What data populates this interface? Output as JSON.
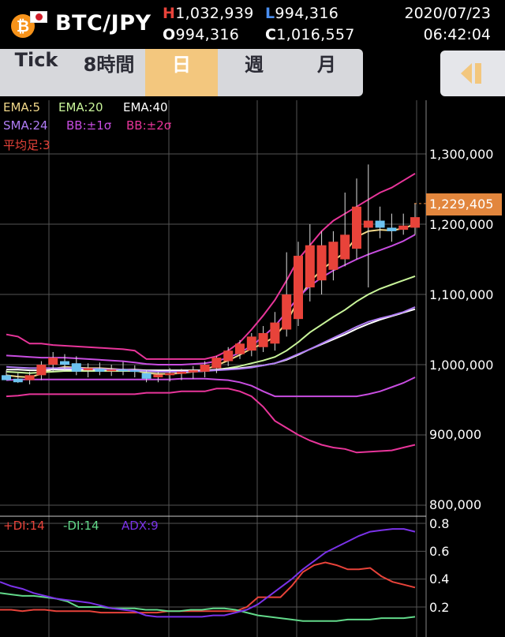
{
  "header": {
    "coin_icon": "bitcoin-icon",
    "flag_icon": "japan-flag-icon",
    "pair": "BTC/JPY",
    "high_label": "H",
    "high": "1,032,939",
    "low_label": "L",
    "low": "994,316",
    "open_label": "O",
    "open": "994,316",
    "close_label": "C",
    "close": "1,016,557",
    "date": "2020/07/23",
    "time": "06:42:04"
  },
  "tabs": [
    {
      "label": "Tick",
      "active": false
    },
    {
      "label": "8時間",
      "active": false
    },
    {
      "label": "日",
      "active": true
    },
    {
      "label": "週",
      "active": false
    },
    {
      "label": "月",
      "active": false
    }
  ],
  "side_button_icon": "collapse-sidebar-icon",
  "colors": {
    "ema5": "#f2d98a",
    "ema20": "#c9f59a",
    "ema40": "#ffffff",
    "sma24": "#b07cf5",
    "bb1": "#c84de0",
    "bb2": "#e8359a",
    "heikin": "#e8433a",
    "candle_up": "#e8433a",
    "candle_down": "#6cc3f0",
    "plus_di": "#e8433a",
    "minus_di": "#62d98a",
    "adx": "#7a32e8"
  },
  "legend": {
    "ema5": "EMA:5",
    "ema20": "EMA:20",
    "ema40": "EMA:40",
    "sma24": "SMA:24",
    "bb1": "BB:±1σ",
    "bb2": "BB:±2σ",
    "heikin": "平均足:3",
    "plus_di": "+DI:14",
    "minus_di": "-DI:14",
    "adx": "ADX:9"
  },
  "last_price": "1,229,405",
  "chart_data": [
    {
      "type": "candlestick",
      "title": "",
      "ylim": [
        795000,
        1350000
      ],
      "y_ticks": [
        "1,300,000",
        "1,200,000",
        "1,100,000",
        "1,000,000",
        "900,000",
        "800,000"
      ],
      "y_tick_values": [
        1300000,
        1200000,
        1100000,
        1000000,
        900000,
        800000
      ],
      "candles": [
        {
          "o": 985000,
          "h": 992000,
          "l": 978000,
          "c": 978000
        },
        {
          "o": 980000,
          "h": 988000,
          "l": 974000,
          "c": 975000
        },
        {
          "o": 978000,
          "h": 990000,
          "l": 972000,
          "c": 985000
        },
        {
          "o": 985000,
          "h": 1005000,
          "l": 978000,
          "c": 1000000
        },
        {
          "o": 1000000,
          "h": 1018000,
          "l": 990000,
          "c": 1010000
        },
        {
          "o": 1005000,
          "h": 1015000,
          "l": 990000,
          "c": 1000000
        },
        {
          "o": 1002000,
          "h": 1012000,
          "l": 985000,
          "c": 990000
        },
        {
          "o": 992000,
          "h": 1002000,
          "l": 982000,
          "c": 995000
        },
        {
          "o": 994000,
          "h": 1003000,
          "l": 985000,
          "c": 990000
        },
        {
          "o": 991000,
          "h": 1000000,
          "l": 984000,
          "c": 993000
        },
        {
          "o": 993000,
          "h": 1004000,
          "l": 985000,
          "c": 992000
        },
        {
          "o": 992000,
          "h": 999000,
          "l": 982000,
          "c": 990000
        },
        {
          "o": 988000,
          "h": 992000,
          "l": 975000,
          "c": 980000
        },
        {
          "o": 982000,
          "h": 990000,
          "l": 975000,
          "c": 986000
        },
        {
          "o": 985000,
          "h": 995000,
          "l": 976000,
          "c": 988000
        },
        {
          "o": 987000,
          "h": 994000,
          "l": 978000,
          "c": 990000
        },
        {
          "o": 989000,
          "h": 998000,
          "l": 980000,
          "c": 992000
        },
        {
          "o": 990000,
          "h": 1005000,
          "l": 982000,
          "c": 1000000
        },
        {
          "o": 995000,
          "h": 1012000,
          "l": 988000,
          "c": 1010000
        },
        {
          "o": 1005000,
          "h": 1025000,
          "l": 998000,
          "c": 1020000
        },
        {
          "o": 1015000,
          "h": 1035000,
          "l": 1008000,
          "c": 1030000
        },
        {
          "o": 1020000,
          "h": 1045000,
          "l": 1012000,
          "c": 1040000
        },
        {
          "o": 1025000,
          "h": 1055000,
          "l": 1018000,
          "c": 1045000
        },
        {
          "o": 1030000,
          "h": 1075000,
          "l": 1020000,
          "c": 1060000
        },
        {
          "o": 1050000,
          "h": 1160000,
          "l": 1040000,
          "c": 1100000
        },
        {
          "o": 1065000,
          "h": 1175000,
          "l": 1055000,
          "c": 1155000
        },
        {
          "o": 1110000,
          "h": 1200000,
          "l": 1090000,
          "c": 1170000
        },
        {
          "o": 1120000,
          "h": 1190000,
          "l": 1100000,
          "c": 1170000
        },
        {
          "o": 1135000,
          "h": 1190000,
          "l": 1120000,
          "c": 1175000
        },
        {
          "o": 1150000,
          "h": 1245000,
          "l": 1140000,
          "c": 1185000
        },
        {
          "o": 1165000,
          "h": 1265000,
          "l": 1150000,
          "c": 1225000
        },
        {
          "o": 1195000,
          "h": 1285000,
          "l": 1110000,
          "c": 1205000
        },
        {
          "o": 1205000,
          "h": 1225000,
          "l": 1180000,
          "c": 1195000
        },
        {
          "o": 1195000,
          "h": 1215000,
          "l": 1175000,
          "c": 1190000
        },
        {
          "o": 1192000,
          "h": 1215000,
          "l": 1185000,
          "c": 1198000
        },
        {
          "o": 1195000,
          "h": 1230000,
          "l": 1185000,
          "c": 1210000
        }
      ],
      "series": [
        {
          "name": "EMA:5",
          "key": "ema5",
          "values": [
            985000,
            983000,
            982000,
            987000,
            994000,
            997000,
            996000,
            995000,
            995000,
            994000,
            993000,
            992000,
            988000,
            987000,
            987000,
            988000,
            990000,
            993000,
            999000,
            1006000,
            1014000,
            1023000,
            1030000,
            1040000,
            1060000,
            1092000,
            1118000,
            1135000,
            1148000,
            1160000,
            1182000,
            1190000,
            1192000,
            1191000,
            1194000,
            1200000
          ]
        },
        {
          "name": "EMA:20",
          "key": "ema20",
          "values": [
            990000,
            989000,
            988000,
            989000,
            990000,
            991000,
            991000,
            991000,
            991000,
            991000,
            991000,
            991000,
            990000,
            990000,
            990000,
            990000,
            990000,
            991000,
            993000,
            995000,
            998000,
            1002000,
            1006000,
            1011000,
            1020000,
            1032000,
            1046000,
            1057000,
            1068000,
            1078000,
            1090000,
            1100000,
            1108000,
            1114000,
            1120000,
            1126000
          ]
        },
        {
          "name": "EMA:40",
          "key": "ema40",
          "values": [
            993000,
            993000,
            992000,
            992000,
            993000,
            993000,
            993000,
            993000,
            993000,
            993000,
            993000,
            993000,
            992000,
            992000,
            992000,
            992000,
            992000,
            992000,
            993000,
            994000,
            995000,
            997000,
            999000,
            1002000,
            1007000,
            1014000,
            1022000,
            1029000,
            1036000,
            1043000,
            1051000,
            1058000,
            1064000,
            1069000,
            1074000,
            1079000
          ]
        },
        {
          "name": "SMA:24",
          "key": "sma24",
          "values": [
            997000,
            996000,
            995000,
            995000,
            995000,
            995000,
            995000,
            994000,
            994000,
            993000,
            993000,
            992000,
            991000,
            990000,
            990000,
            990000,
            990000,
            991000,
            992000,
            993000,
            994000,
            996000,
            999000,
            1002000,
            1008000,
            1015000,
            1022000,
            1030000,
            1038000,
            1046000,
            1054000,
            1061000,
            1066000,
            1070000,
            1075000,
            1082000
          ]
        },
        {
          "name": "BB:+1σ",
          "key": "bb1",
          "values": [
            1013000,
            1012000,
            1011000,
            1010000,
            1010000,
            1010000,
            1009000,
            1008000,
            1007000,
            1006000,
            1005000,
            1003000,
            1001000,
            1000000,
            1000000,
            1000000,
            1001000,
            1002000,
            1005000,
            1010000,
            1017000,
            1027000,
            1040000,
            1055000,
            1075000,
            1096000,
            1112000,
            1124000,
            1134000,
            1142000,
            1150000,
            1157000,
            1163000,
            1169000,
            1176000,
            1185000
          ]
        },
        {
          "name": "BB:-1σ",
          "key": "bb1",
          "values": [
            978000,
            979000,
            979000,
            979000,
            979000,
            979000,
            979000,
            979000,
            979000,
            979000,
            979000,
            979000,
            979000,
            979000,
            979000,
            980000,
            980000,
            980000,
            979000,
            978000,
            975000,
            970000,
            962000,
            955000,
            955000,
            955000,
            955000,
            955000,
            955000,
            955000,
            955000,
            958000,
            962000,
            968000,
            974000,
            982000
          ]
        },
        {
          "name": "BB:+2σ",
          "key": "bb2",
          "values": [
            1043000,
            1040000,
            1030000,
            1030000,
            1028000,
            1027000,
            1026000,
            1025000,
            1024000,
            1023000,
            1022000,
            1020000,
            1008000,
            1008000,
            1008000,
            1008000,
            1008000,
            1008000,
            1012000,
            1020000,
            1032000,
            1050000,
            1070000,
            1092000,
            1120000,
            1150000,
            1170000,
            1190000,
            1205000,
            1215000,
            1225000,
            1235000,
            1245000,
            1252000,
            1262000,
            1272000
          ]
        },
        {
          "name": "BB:-2σ",
          "key": "bb2",
          "values": [
            955000,
            956000,
            958000,
            958000,
            958000,
            958000,
            958000,
            958000,
            958000,
            958000,
            958000,
            958000,
            960000,
            960000,
            960000,
            962000,
            962000,
            962000,
            966000,
            966000,
            962000,
            955000,
            940000,
            920000,
            910000,
            900000,
            892000,
            886000,
            882000,
            880000,
            875000,
            876000,
            877000,
            878000,
            882000,
            886000
          ]
        }
      ]
    },
    {
      "type": "line",
      "title": "",
      "ylim": [
        0.05,
        0.85
      ],
      "y_ticks": [
        "0.8",
        "0.6",
        "0.4",
        "0.2"
      ],
      "y_tick_values": [
        0.8,
        0.6,
        0.4,
        0.2
      ],
      "series": [
        {
          "name": "+DI:14",
          "key": "plus_di",
          "values": [
            0.18,
            0.18,
            0.17,
            0.18,
            0.18,
            0.17,
            0.17,
            0.17,
            0.17,
            0.16,
            0.16,
            0.16,
            0.16,
            0.16,
            0.16,
            0.17,
            0.17,
            0.17,
            0.17,
            0.17,
            0.17,
            0.17,
            0.2,
            0.27,
            0.27,
            0.27,
            0.35,
            0.45,
            0.5,
            0.52,
            0.5,
            0.47,
            0.47,
            0.48,
            0.42,
            0.38,
            0.36,
            0.34
          ]
        },
        {
          "name": "-DI:14",
          "key": "minus_di",
          "values": [
            0.3,
            0.29,
            0.28,
            0.28,
            0.27,
            0.26,
            0.24,
            0.2,
            0.2,
            0.2,
            0.19,
            0.19,
            0.19,
            0.18,
            0.18,
            0.17,
            0.17,
            0.18,
            0.18,
            0.19,
            0.19,
            0.18,
            0.16,
            0.14,
            0.13,
            0.12,
            0.11,
            0.1,
            0.1,
            0.1,
            0.1,
            0.11,
            0.11,
            0.11,
            0.12,
            0.12,
            0.12,
            0.13
          ]
        },
        {
          "name": "ADX:9",
          "key": "adx",
          "values": [
            0.38,
            0.35,
            0.33,
            0.3,
            0.28,
            0.26,
            0.25,
            0.24,
            0.23,
            0.21,
            0.19,
            0.18,
            0.17,
            0.14,
            0.13,
            0.13,
            0.13,
            0.13,
            0.13,
            0.14,
            0.14,
            0.16,
            0.18,
            0.22,
            0.28,
            0.34,
            0.4,
            0.47,
            0.53,
            0.59,
            0.63,
            0.67,
            0.71,
            0.74,
            0.75,
            0.76,
            0.76,
            0.74
          ]
        }
      ]
    }
  ]
}
